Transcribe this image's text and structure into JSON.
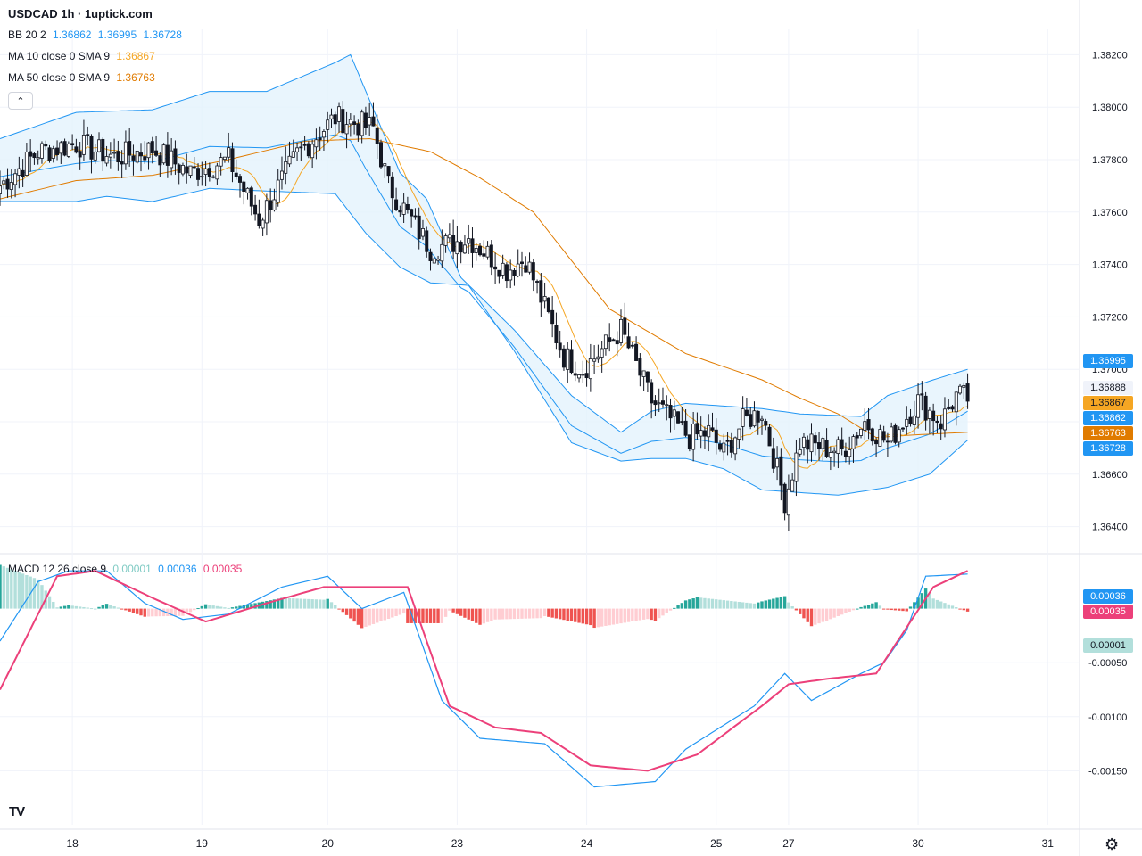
{
  "header": {
    "title": "USDCAD 1h · 1uptick.com"
  },
  "legends": {
    "bb": {
      "label": "BB 20 2",
      "v1": "1.36862",
      "v2": "1.36995",
      "v3": "1.36728"
    },
    "ma10": {
      "label": "MA 10 close 0 SMA 9",
      "value": "1.36867"
    },
    "ma50": {
      "label": "MA 50 close 0 SMA 9",
      "value": "1.36763"
    },
    "macd": {
      "label": "MACD 12 26 close 9",
      "hist": "0.00001",
      "macd": "0.00036",
      "signal": "0.00035"
    }
  },
  "colors": {
    "bb": "#2196f3",
    "bb_fill": "#e3f2fd",
    "ma10": "#f5a623",
    "ma50": "#e07b00",
    "macd_line": "#2196f3",
    "signal_line": "#ec407a",
    "hist_pos_strong": "#26a69a",
    "hist_pos_weak": "#b2dfdb",
    "hist_neg_strong": "#ef5350",
    "hist_neg_weak": "#ffcdd2",
    "last_price": "#f0f0f0"
  },
  "price_axis": {
    "ticks": [
      "1.38200",
      "1.38000",
      "1.37800",
      "1.37600",
      "1.37400",
      "1.37200",
      "1.37000",
      "1.36800",
      "1.36600",
      "1.36400"
    ]
  },
  "price_tags": {
    "bb_upper": "1.36995",
    "last": "1.36888",
    "ma10": "1.36867",
    "bb_basis": "1.36862",
    "ma50": "1.36763",
    "bb_lower": "1.36728"
  },
  "macd_axis": {
    "ticks": [
      "-0.00050",
      "-0.00100",
      "-0.00150"
    ]
  },
  "macd_tags": {
    "macd": "0.00036",
    "signal": "0.00035",
    "hist": "0.00001"
  },
  "time_axis": {
    "ticks": [
      "18",
      "19",
      "20",
      "23",
      "24",
      "25",
      "27",
      "30",
      "31"
    ]
  },
  "icons": {
    "logo": "tradingview-logo",
    "settings": "gear-icon",
    "collapse": "chevron-up-icon"
  },
  "chart_data": {
    "type": "candlestick",
    "symbol": "USDCAD",
    "interval": "1h",
    "price_range": [
      1.363,
      1.383
    ],
    "close_path": [
      [
        0,
        1.377
      ],
      [
        10,
        1.3783
      ],
      [
        20,
        1.3786
      ],
      [
        30,
        1.3781
      ],
      [
        40,
        1.3784
      ],
      [
        50,
        1.3775
      ],
      [
        60,
        1.378
      ],
      [
        68,
        1.3757
      ],
      [
        78,
        1.3782
      ],
      [
        88,
        1.3796
      ],
      [
        98,
        1.3792
      ],
      [
        102,
        1.377
      ],
      [
        113,
        1.3746
      ],
      [
        123,
        1.375
      ],
      [
        133,
        1.3738
      ],
      [
        138,
        1.3742
      ],
      [
        148,
        1.3705
      ],
      [
        153,
        1.37
      ],
      [
        163,
        1.3715
      ],
      [
        171,
        1.3688
      ],
      [
        181,
        1.3674
      ],
      [
        186,
        1.3676
      ],
      [
        190,
        1.3668
      ],
      [
        195,
        1.368
      ],
      [
        200,
        1.3684
      ],
      [
        206,
        1.365
      ],
      [
        210,
        1.3672
      ],
      [
        221,
        1.3669
      ],
      [
        227,
        1.368
      ],
      [
        233,
        1.3672
      ],
      [
        241,
        1.3688
      ],
      [
        247,
        1.368
      ],
      [
        251,
        1.369
      ],
      [
        254,
        1.3689
      ]
    ],
    "bb_upper_path": [
      [
        0,
        1.3788
      ],
      [
        20,
        1.3798
      ],
      [
        40,
        1.3799
      ],
      [
        55,
        1.3806
      ],
      [
        70,
        1.3806
      ],
      [
        88,
        1.3817
      ],
      [
        92,
        1.382
      ],
      [
        105,
        1.3775
      ],
      [
        112,
        1.3765
      ],
      [
        121,
        1.3735
      ],
      [
        135,
        1.3715
      ],
      [
        150,
        1.369
      ],
      [
        163,
        1.3676
      ],
      [
        171,
        1.3684
      ],
      [
        180,
        1.3687
      ],
      [
        190,
        1.3686
      ],
      [
        200,
        1.3685
      ],
      [
        210,
        1.3683
      ],
      [
        226,
        1.3682
      ],
      [
        233,
        1.369
      ],
      [
        245,
        1.3696
      ],
      [
        254,
        1.37
      ]
    ],
    "bb_lower_path": [
      [
        0,
        1.3764
      ],
      [
        20,
        1.3764
      ],
      [
        28,
        1.3766
      ],
      [
        40,
        1.3764
      ],
      [
        55,
        1.3769
      ],
      [
        70,
        1.3768
      ],
      [
        88,
        1.3767
      ],
      [
        96,
        1.3752
      ],
      [
        105,
        1.3739
      ],
      [
        113,
        1.3733
      ],
      [
        123,
        1.3732
      ],
      [
        135,
        1.3707
      ],
      [
        150,
        1.3672
      ],
      [
        163,
        1.3665
      ],
      [
        171,
        1.3666
      ],
      [
        180,
        1.3666
      ],
      [
        190,
        1.3662
      ],
      [
        200,
        1.3654
      ],
      [
        210,
        1.3653
      ],
      [
        220,
        1.3652
      ],
      [
        233,
        1.3655
      ],
      [
        244,
        1.366
      ],
      [
        254,
        1.3673
      ]
    ],
    "ma50_path": [
      [
        0,
        1.3765
      ],
      [
        20,
        1.3772
      ],
      [
        40,
        1.3774
      ],
      [
        60,
        1.378
      ],
      [
        80,
        1.3787
      ],
      [
        97,
        1.3788
      ],
      [
        113,
        1.3783
      ],
      [
        126,
        1.3773
      ],
      [
        140,
        1.376
      ],
      [
        160,
        1.3723
      ],
      [
        180,
        1.3706
      ],
      [
        200,
        1.3696
      ],
      [
        210,
        1.3689
      ],
      [
        220,
        1.3683
      ],
      [
        230,
        1.3674
      ],
      [
        240,
        1.3675
      ],
      [
        254,
        1.3676
      ]
    ],
    "macd_range": [
      -0.002,
      0.0005
    ],
    "macd_path": [
      [
        0,
        -0.0003
      ],
      [
        10,
        0.00025
      ],
      [
        18,
        0.00035
      ],
      [
        28,
        0.00035
      ],
      [
        38,
        5e-05
      ],
      [
        48,
        -0.0001
      ],
      [
        60,
        -5e-05
      ],
      [
        74,
        0.0002
      ],
      [
        86,
        0.0003
      ],
      [
        95,
        0.0
      ],
      [
        106,
        0.00015
      ],
      [
        116,
        -0.00085
      ],
      [
        126,
        -0.0012
      ],
      [
        143,
        -0.00125
      ],
      [
        156,
        -0.00165
      ],
      [
        172,
        -0.0016
      ],
      [
        180,
        -0.0013
      ],
      [
        198,
        -0.0009
      ],
      [
        206,
        -0.0006
      ],
      [
        213,
        -0.00085
      ],
      [
        226,
        -0.0006
      ],
      [
        232,
        -0.0005
      ],
      [
        238,
        -0.0002
      ],
      [
        243,
        0.0003
      ],
      [
        254,
        0.00032
      ]
    ],
    "signal_path": [
      [
        0,
        -0.00075
      ],
      [
        15,
        0.0003
      ],
      [
        25,
        0.00035
      ],
      [
        40,
        0.0001
      ],
      [
        54,
        -0.00012
      ],
      [
        70,
        5e-05
      ],
      [
        85,
        0.0002
      ],
      [
        107,
        0.0002
      ],
      [
        118,
        -0.0009
      ],
      [
        130,
        -0.0011
      ],
      [
        142,
        -0.00115
      ],
      [
        155,
        -0.00145
      ],
      [
        170,
        -0.0015
      ],
      [
        183,
        -0.00135
      ],
      [
        200,
        -0.0009
      ],
      [
        207,
        -0.0007
      ],
      [
        217,
        -0.00065
      ],
      [
        230,
        -0.0006
      ],
      [
        245,
        0.0002
      ],
      [
        254,
        0.00035
      ]
    ]
  }
}
